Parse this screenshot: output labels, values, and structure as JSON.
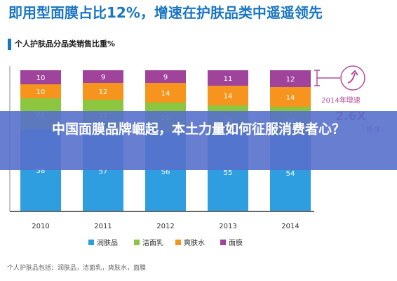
{
  "headline": "即用型面膜占比12%，增速在护肤品类中遥遥领先",
  "subtitle": "个人护肤品分品类销售比重%",
  "overlay_title": "中国面膜品牌崛起，本土力量如何征服消费者心？",
  "annotation": {
    "growth_label": "2014年增速",
    "growth_value": "2.6X",
    "compare_label": "整体"
  },
  "footnote": "个人护肤品包括：润肤品，洁面乳，爽肤水，面膜",
  "chart_data": {
    "type": "bar",
    "stacked": true,
    "categories": [
      "2010",
      "2011",
      "2012",
      "2013",
      "2014"
    ],
    "series": [
      {
        "name": "润肤品",
        "color": "#2e9ee0",
        "values": [
          58,
          57,
          56,
          55,
          54
        ]
      },
      {
        "name": "洁面乳",
        "color": "#8cc63f",
        "values": [
          22,
          22,
          21,
          20,
          20
        ]
      },
      {
        "name": "爽肤水",
        "color": "#f7941d",
        "values": [
          10,
          12,
          14,
          14,
          14
        ]
      },
      {
        "name": "面膜",
        "color": "#a0449b",
        "values": [
          10,
          9,
          9,
          11,
          12
        ]
      }
    ],
    "ylim": [
      0,
      100
    ],
    "legend_position": "bottom"
  }
}
